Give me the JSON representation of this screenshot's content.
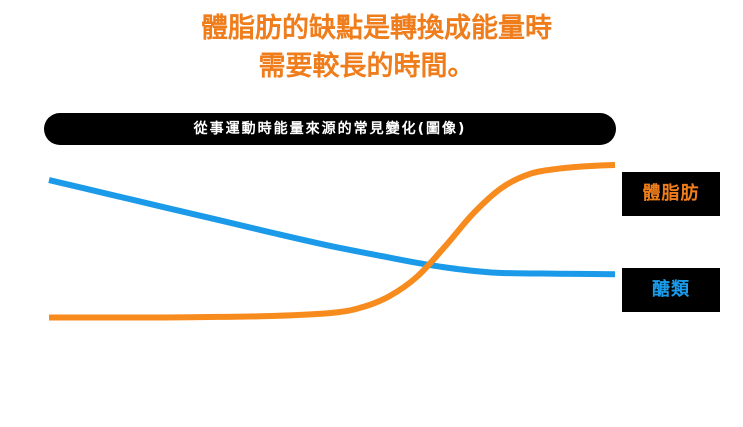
{
  "headline": {
    "line1": "體脂肪的缺點是轉換成能量時",
    "line2": "需要較長的時間。"
  },
  "colors": {
    "accent": "#f07d1b",
    "fat_line": "#f88b1e",
    "carb_line": "#1a9ae8",
    "bar_bg": "#000000"
  },
  "chart_data": {
    "type": "line",
    "title": "從事運動時能量來源的常見變化(圖像)",
    "xlabel": "",
    "ylabel": "",
    "grid": false,
    "legend": "right",
    "series": [
      {
        "name": "體脂肪",
        "x": [
          0,
          10,
          20,
          30,
          40,
          50,
          55,
          60,
          65,
          70,
          75,
          80,
          85,
          90,
          95,
          100
        ],
        "y": [
          1.0,
          1.0,
          1.0,
          1.2,
          1.6,
          2.8,
          4.8,
          9.2,
          17.0,
          29.0,
          42.0,
          52.0,
          57.5,
          59.5,
          60.5,
          61.0
        ]
      },
      {
        "name": "醣類",
        "x": [
          0,
          10,
          20,
          30,
          40,
          50,
          60,
          65,
          70,
          75,
          80,
          90,
          100
        ],
        "y": [
          55.0,
          49.8,
          44.5,
          39.3,
          34.0,
          29.0,
          24.6,
          22.5,
          20.7,
          19.3,
          18.5,
          18.2,
          18.0
        ]
      }
    ],
    "xlim": [
      0,
      100
    ],
    "ylim": [
      0,
      70
    ]
  },
  "legend": {
    "fat_label": "體脂肪",
    "carb_label": "醣類"
  }
}
